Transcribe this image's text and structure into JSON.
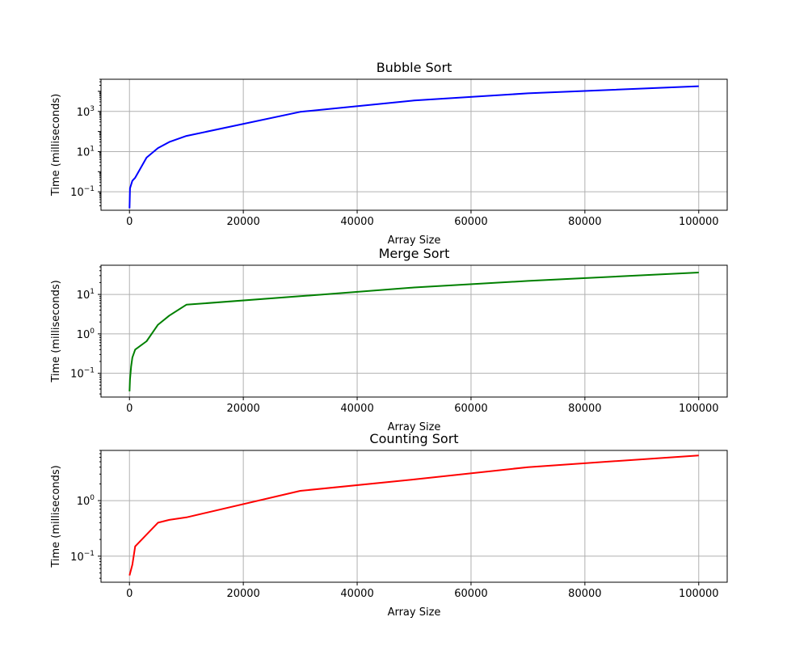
{
  "chart_data": [
    {
      "type": "line",
      "title": "Bubble Sort",
      "xlabel": "Array Size",
      "ylabel": "Time (milliseconds)",
      "yscale": "log",
      "grid": true,
      "color": "#0000ff",
      "xlim": [
        -5000,
        105000
      ],
      "ylim": [
        0.012,
        40000
      ],
      "xticks": [
        {
          "value": 0,
          "label": "0"
        },
        {
          "value": 20000,
          "label": "20000"
        },
        {
          "value": 40000,
          "label": "40000"
        },
        {
          "value": 60000,
          "label": "60000"
        },
        {
          "value": 80000,
          "label": "80000"
        },
        {
          "value": 100000,
          "label": "100000"
        }
      ],
      "yticks": [
        {
          "value": 0.1,
          "base": "10",
          "exp": "−1"
        },
        {
          "value": 10,
          "base": "10",
          "exp": "1"
        },
        {
          "value": 1000,
          "base": "10",
          "exp": "3"
        }
      ],
      "x": [
        10,
        100,
        500,
        1000,
        3000,
        5000,
        7000,
        10000,
        30000,
        50000,
        70000,
        100000
      ],
      "y": [
        0.015,
        0.15,
        0.35,
        0.5,
        5,
        15,
        30,
        60,
        950,
        3500,
        8000,
        18000
      ]
    },
    {
      "type": "line",
      "title": "Merge Sort",
      "xlabel": "Array Size",
      "ylabel": "Time (milliseconds)",
      "yscale": "log",
      "grid": true,
      "color": "#008000",
      "xlim": [
        -5000,
        105000
      ],
      "ylim": [
        0.025,
        55
      ],
      "xticks": [
        {
          "value": 0,
          "label": "0"
        },
        {
          "value": 20000,
          "label": "20000"
        },
        {
          "value": 40000,
          "label": "40000"
        },
        {
          "value": 60000,
          "label": "60000"
        },
        {
          "value": 80000,
          "label": "80000"
        },
        {
          "value": 100000,
          "label": "100000"
        }
      ],
      "yticks": [
        {
          "value": 0.1,
          "base": "10",
          "exp": "−1"
        },
        {
          "value": 1,
          "base": "10",
          "exp": "0"
        },
        {
          "value": 10,
          "base": "10",
          "exp": "1"
        }
      ],
      "x": [
        10,
        100,
        300,
        500,
        1000,
        3000,
        5000,
        7000,
        10000,
        30000,
        50000,
        70000,
        100000
      ],
      "y": [
        0.035,
        0.07,
        0.15,
        0.25,
        0.4,
        0.65,
        1.7,
        2.9,
        5.5,
        9,
        15,
        22,
        36
      ]
    },
    {
      "type": "line",
      "title": "Counting Sort",
      "xlabel": "Array Size",
      "ylabel": "Time (milliseconds)",
      "yscale": "log",
      "grid": true,
      "color": "#ff0000",
      "xlim": [
        -5000,
        105000
      ],
      "ylim": [
        0.034,
        8
      ],
      "xticks": [
        {
          "value": 0,
          "label": "0"
        },
        {
          "value": 20000,
          "label": "20000"
        },
        {
          "value": 40000,
          "label": "40000"
        },
        {
          "value": 60000,
          "label": "60000"
        },
        {
          "value": 80000,
          "label": "80000"
        },
        {
          "value": 100000,
          "label": "100000"
        }
      ],
      "yticks": [
        {
          "value": 0.1,
          "base": "10",
          "exp": "−1"
        },
        {
          "value": 1,
          "base": "10",
          "exp": "0"
        }
      ],
      "x": [
        10,
        500,
        1000,
        5000,
        7000,
        10000,
        30000,
        50000,
        70000,
        100000
      ],
      "y": [
        0.045,
        0.07,
        0.15,
        0.4,
        0.45,
        0.5,
        1.5,
        2.4,
        4.0,
        6.5
      ]
    }
  ]
}
